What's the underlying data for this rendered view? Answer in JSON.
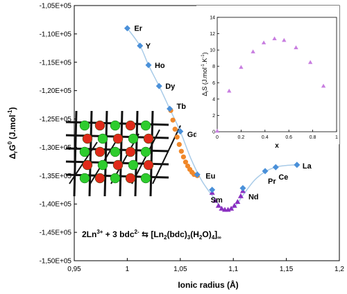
{
  "chart_data": [
    {
      "type": "scatter",
      "title": "",
      "xlabel": "Ionic radius (Å)",
      "ylabel_main": "Δ",
      "ylabel_sub": "r",
      "ylabel_rest": "G",
      "ylabel_sup": "0",
      "ylabel_units": "(J.mol",
      "ylabel_units_sup": "-1",
      "ylabel_units_end": ")",
      "xlim": [
        0.95,
        1.2
      ],
      "ylim": [
        -150000,
        -105000
      ],
      "x_ticks": [
        0.95,
        1.0,
        1.05,
        1.1,
        1.15,
        1.2
      ],
      "x_tick_labels": [
        "0,95",
        "1",
        "1,05",
        "1,1",
        "1,15",
        "1,2"
      ],
      "y_ticks": [
        -105000,
        -110000,
        -115000,
        -120000,
        -125000,
        -130000,
        -135000,
        -140000,
        -145000,
        -150000
      ],
      "y_tick_labels": [
        "-1,05E+05",
        "-1,10E+05",
        "-1,15E+05",
        "-1,20E+05",
        "-1,25E+05",
        "-1,30E+05",
        "-1,35E+05",
        "-1,40E+05",
        "-1,45E+05",
        "-1,50E+05"
      ],
      "grid": false,
      "series": [
        {
          "marker": "diamond",
          "color": "#4a90d9",
          "points": [
            {
              "x": 1.0,
              "y": -109000,
              "label": "Er"
            },
            {
              "x": 1.012,
              "y": -112100,
              "label": "Y"
            },
            {
              "x": 1.02,
              "y": -115500,
              "label": "Ho"
            },
            {
              "x": 1.03,
              "y": -119200,
              "label": "Dy"
            },
            {
              "x": 1.04,
              "y": -123200,
              "label": "Tb"
            },
            {
              "x": 1.05,
              "y": -127200,
              "label": "Gd"
            },
            {
              "x": 1.066,
              "y": -134800,
              "label": "Eu"
            },
            {
              "x": 1.08,
              "y": -137500,
              "label": "Sm"
            },
            {
              "x": 1.109,
              "y": -137200,
              "label": "Nd"
            },
            {
              "x": 1.13,
              "y": -134200,
              "label": "Pr"
            },
            {
              "x": 1.14,
              "y": -133500,
              "label": "Ce"
            },
            {
              "x": 1.16,
              "y": -133100,
              "label": "La"
            }
          ]
        },
        {
          "marker": "circle",
          "color": "#f0882a",
          "points": [
            {
              "x": 1.041,
              "y": -123500
            },
            {
              "x": 1.043,
              "y": -125200
            },
            {
              "x": 1.045,
              "y": -126800
            },
            {
              "x": 1.047,
              "y": -128200
            },
            {
              "x": 1.049,
              "y": -129500
            },
            {
              "x": 1.051,
              "y": -130700
            },
            {
              "x": 1.053,
              "y": -131700
            },
            {
              "x": 1.055,
              "y": -132600
            },
            {
              "x": 1.057,
              "y": -133300
            },
            {
              "x": 1.059,
              "y": -133900
            },
            {
              "x": 1.061,
              "y": -134400
            },
            {
              "x": 1.063,
              "y": -134800
            },
            {
              "x": 1.066,
              "y": -135000
            }
          ]
        },
        {
          "marker": "triangle",
          "color": "#8a2fc0",
          "points": [
            {
              "x": 1.08,
              "y": -138000
            },
            {
              "x": 1.083,
              "y": -139400
            },
            {
              "x": 1.086,
              "y": -140300
            },
            {
              "x": 1.089,
              "y": -140800
            },
            {
              "x": 1.092,
              "y": -141000
            },
            {
              "x": 1.095,
              "y": -141000
            },
            {
              "x": 1.098,
              "y": -140800
            },
            {
              "x": 1.101,
              "y": -140300
            },
            {
              "x": 1.104,
              "y": -139600
            },
            {
              "x": 1.107,
              "y": -138600
            },
            {
              "x": 1.109,
              "y": -137700
            }
          ]
        }
      ],
      "curve": [
        [
          1.0,
          -109000
        ],
        [
          1.012,
          -112100
        ],
        [
          1.02,
          -115500
        ],
        [
          1.03,
          -119200
        ],
        [
          1.04,
          -123200
        ],
        [
          1.05,
          -127200
        ],
        [
          1.06,
          -132000
        ],
        [
          1.07,
          -135800
        ],
        [
          1.08,
          -138500
        ],
        [
          1.09,
          -140800
        ],
        [
          1.1,
          -140700
        ],
        [
          1.11,
          -138200
        ],
        [
          1.12,
          -135800
        ],
        [
          1.13,
          -134300
        ],
        [
          1.14,
          -133500
        ],
        [
          1.15,
          -133200
        ],
        [
          1.16,
          -133100
        ]
      ],
      "curve_color": "#a8cbe8",
      "annotation": {
        "reactant": "2Ln",
        "reactant_sup": "3+",
        "plus": " + 3 bdc",
        "plus_sup": "2-",
        "arrow": " ⇆ ",
        "product": "[Ln",
        "product_sub1": "2",
        "product_mid": "(bdc)",
        "product_sub2": "3",
        "product_mid2": "(H",
        "product_sub3": "2",
        "product_end": "O)",
        "product_sub4": "4",
        "product_close": "]",
        "product_sub5": "∞"
      }
    },
    {
      "type": "scatter",
      "title": "",
      "xlabel": "x",
      "ylabel_main": "Δ",
      "ylabel_sub": "r",
      "ylabel_rest": "S (J.mol",
      "ylabel_sup": "-1",
      "ylabel_mid": ".K",
      "ylabel_sup2": "-1",
      "ylabel_end": ")",
      "xlim": [
        0,
        1
      ],
      "ylim": [
        0,
        14
      ],
      "x_ticks": [
        0,
        0.2,
        0.4,
        0.6,
        0.8,
        1
      ],
      "x_tick_labels": [
        "0",
        "0.2",
        "0.4",
        "0.6",
        "0.8",
        "1"
      ],
      "y_ticks": [
        0,
        2,
        4,
        6,
        8,
        10,
        12,
        14
      ],
      "y_tick_labels": [
        "0",
        "2",
        "4",
        "6",
        "8",
        "10",
        "12",
        "14"
      ],
      "grid": false,
      "series": [
        {
          "marker": "triangle",
          "color": "#c87ee0",
          "points": [
            {
              "x": 0.0,
              "y": 0.1
            },
            {
              "x": 0.1,
              "y": 5.0
            },
            {
              "x": 0.2,
              "y": 7.9
            },
            {
              "x": 0.3,
              "y": 9.8
            },
            {
              "x": 0.39,
              "y": 10.9
            },
            {
              "x": 0.48,
              "y": 11.4
            },
            {
              "x": 0.56,
              "y": 11.2
            },
            {
              "x": 0.66,
              "y": 10.3
            },
            {
              "x": 0.78,
              "y": 8.5
            },
            {
              "x": 0.89,
              "y": 5.6
            }
          ]
        }
      ]
    }
  ],
  "structure_image": {
    "description_icon": "crystal-lattice-icon",
    "colors": {
      "green": "#2ecc2e",
      "red": "#e02a1a",
      "rod": "#111111"
    }
  }
}
